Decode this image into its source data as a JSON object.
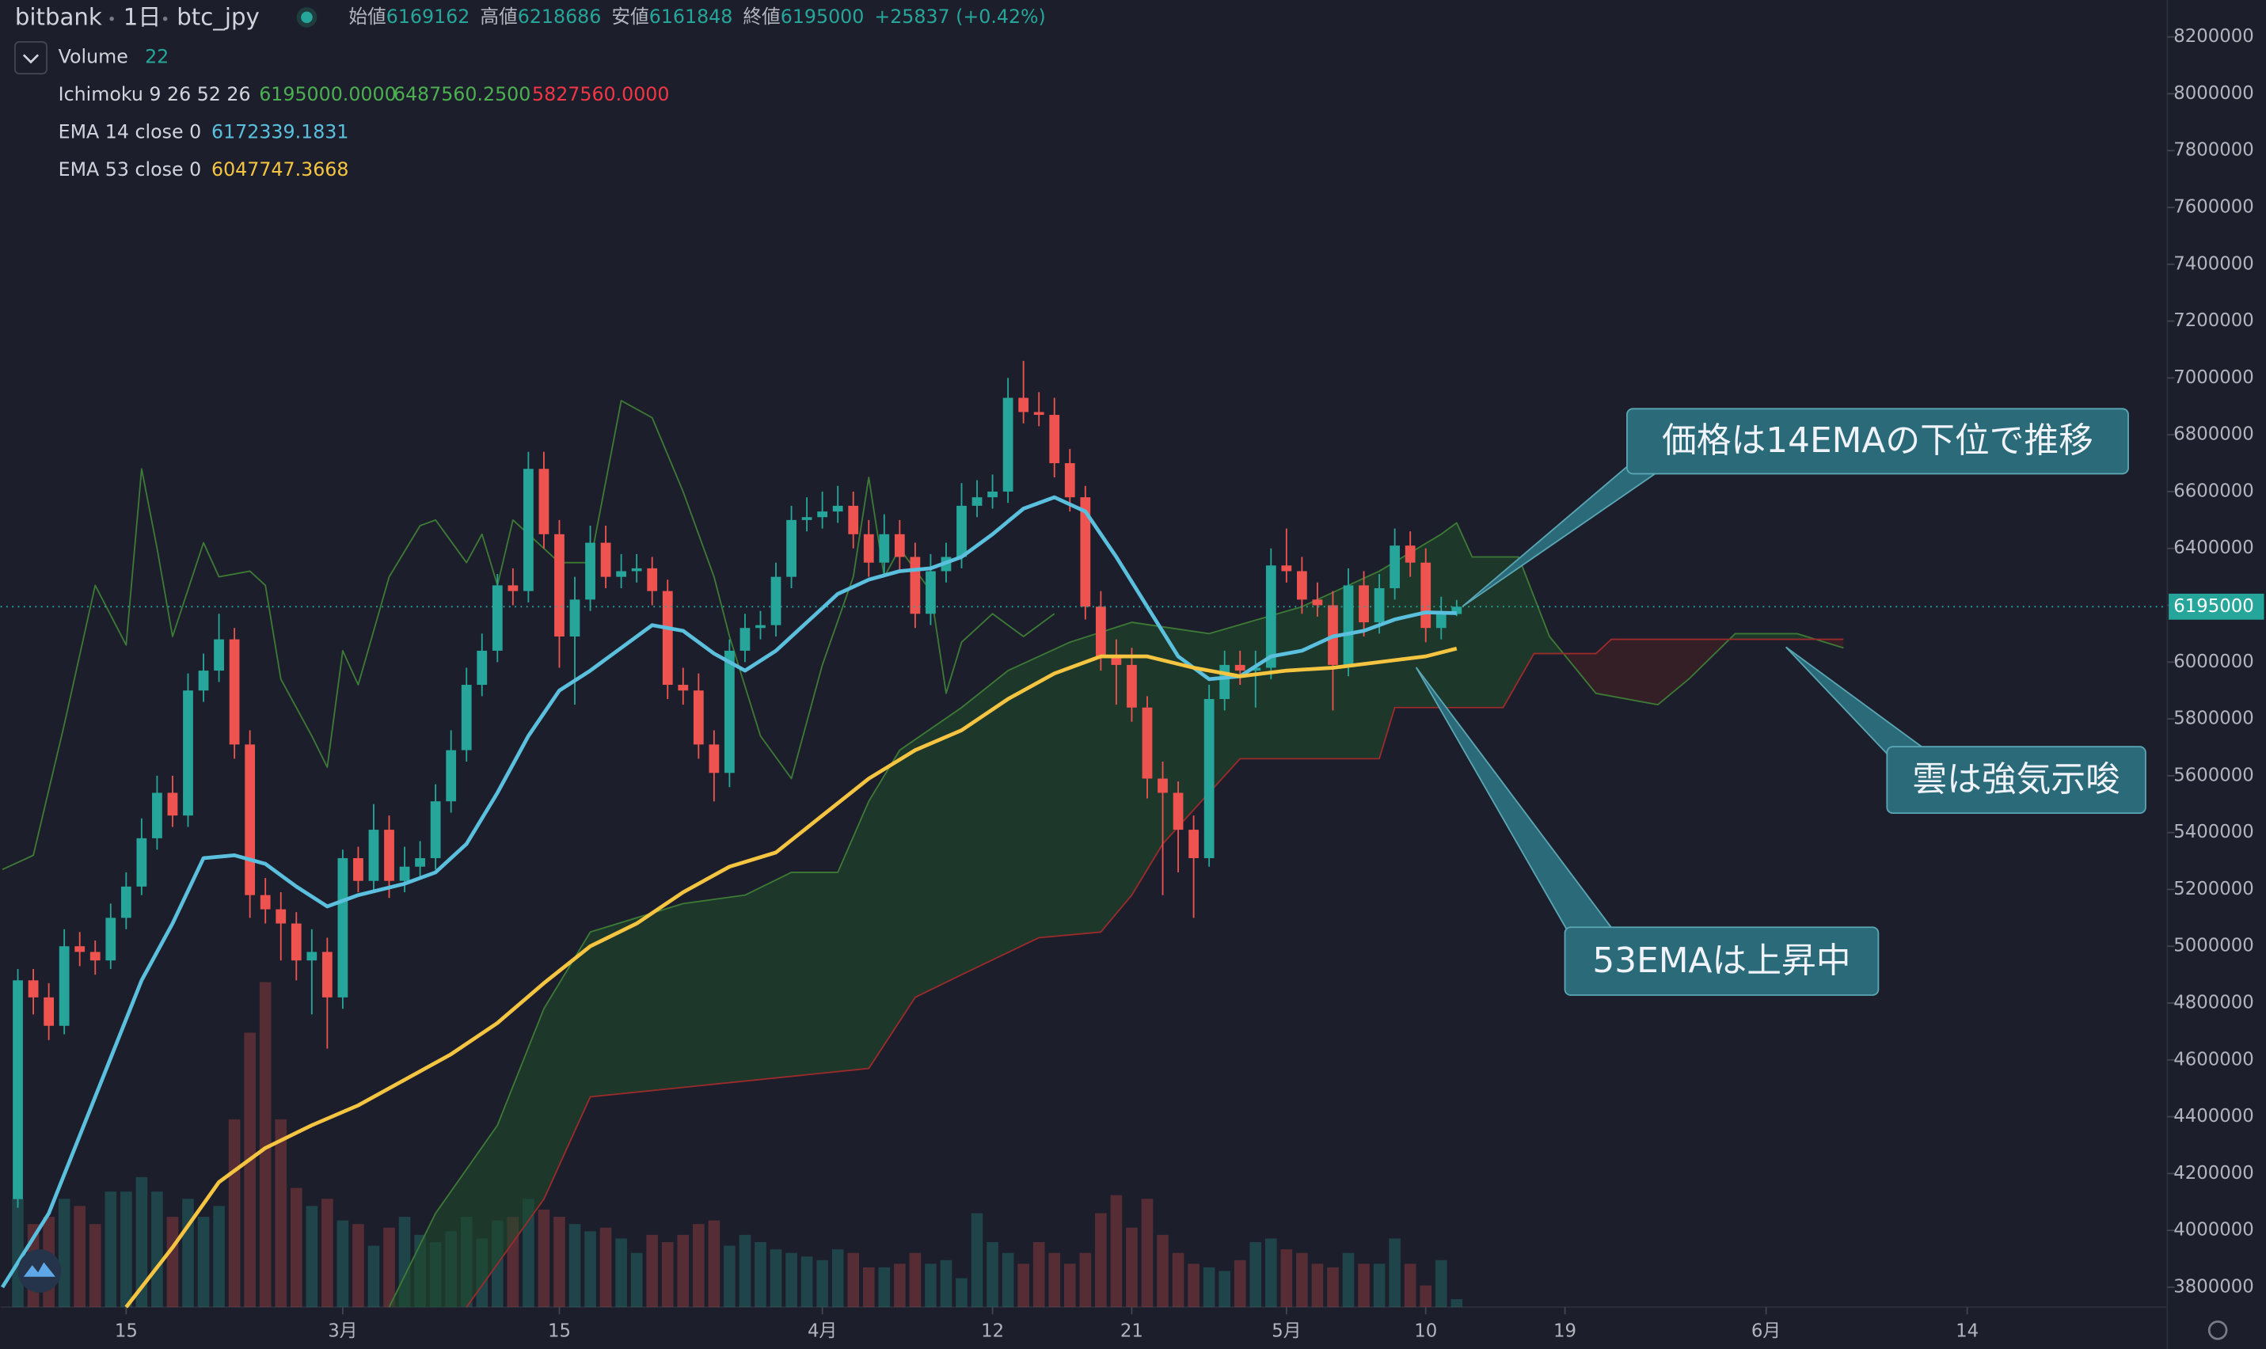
{
  "chart_data": {
    "type": "candlestick",
    "header": {
      "exchange": "bitbank",
      "interval": "1日",
      "symbol": "btc_jpy",
      "open_label": "始値",
      "high_label": "高値",
      "low_label": "安値",
      "close_label": "終値",
      "change": "+25837 (+0.42%)"
    },
    "up_color": "#26a69a",
    "down_color": "#ef5350",
    "grid": false,
    "xlim": [
      -8.12,
      131.93
    ],
    "ylim": [
      3730000,
      8330000
    ],
    "xticks": [
      {
        "value": 0,
        "label": "15"
      },
      {
        "value": 14,
        "label": "3月"
      },
      {
        "value": 28,
        "label": "15"
      },
      {
        "value": 45,
        "label": "4月"
      },
      {
        "value": 56,
        "label": "12"
      },
      {
        "value": 65,
        "label": "21"
      },
      {
        "value": 75,
        "label": "5月"
      },
      {
        "value": 84,
        "label": "10"
      },
      {
        "value": 93,
        "label": "19"
      },
      {
        "value": 106,
        "label": "6月"
      },
      {
        "value": 119,
        "label": "14"
      }
    ],
    "yticks": [
      3800000,
      4000000,
      4200000,
      4400000,
      4600000,
      4800000,
      5000000,
      5200000,
      5400000,
      5600000,
      5800000,
      6000000,
      6200000,
      6400000,
      6600000,
      6800000,
      7000000,
      7200000,
      7400000,
      7600000,
      7800000,
      8000000,
      8200000
    ],
    "candles": {
      "volume_name": "Volume",
      "x": [
        -7,
        -6,
        -5,
        -4,
        -3,
        -2,
        -1,
        0,
        1,
        2,
        3,
        4,
        5,
        6,
        7,
        8,
        9,
        10,
        11,
        12,
        13,
        14,
        15,
        16,
        17,
        18,
        19,
        20,
        21,
        22,
        23,
        24,
        25,
        26,
        27,
        28,
        29,
        30,
        31,
        32,
        33,
        34,
        35,
        36,
        37,
        38,
        39,
        40,
        41,
        42,
        43,
        44,
        45,
        46,
        47,
        48,
        49,
        50,
        51,
        52,
        53,
        54,
        55,
        56,
        57,
        58,
        59,
        60,
        61,
        62,
        63,
        64,
        65,
        66,
        67,
        68,
        69,
        70,
        71,
        72,
        73,
        74,
        75,
        76,
        77,
        78,
        79,
        80,
        81,
        82,
        83,
        84,
        85,
        86
      ],
      "open": [
        4110000,
        4880000,
        4820000,
        4720000,
        5000000,
        4980000,
        4950000,
        5100000,
        5210000,
        5380000,
        5540000,
        5460000,
        5900000,
        5970000,
        6080000,
        5710000,
        5180000,
        5130000,
        5080000,
        4950000,
        4980000,
        4820000,
        5310000,
        5230000,
        5410000,
        5230000,
        5280000,
        5310000,
        5510000,
        5690000,
        5920000,
        6040000,
        6270000,
        6250000,
        6680000,
        6450000,
        6090000,
        6220000,
        6420000,
        6300000,
        6320000,
        6330000,
        6250000,
        5920000,
        5900000,
        5710000,
        5610000,
        6040000,
        6120000,
        6130000,
        6300000,
        6500000,
        6510000,
        6530000,
        6550000,
        6450000,
        6350000,
        6450000,
        6370000,
        6170000,
        6320000,
        6370000,
        6550000,
        6580000,
        6600000,
        6930000,
        6880000,
        6870000,
        6700000,
        6580000,
        6195000,
        6020000,
        5990000,
        5840000,
        5590000,
        5540000,
        5410000,
        5310000,
        5870000,
        5990000,
        5970000,
        5980000,
        6340000,
        6320000,
        6220000,
        6200000,
        5990000,
        6270000,
        6140000,
        6260000,
        6410000,
        6350000,
        6120000,
        6169162
      ],
      "high": [
        4920000,
        4920000,
        4870000,
        5060000,
        5050000,
        5020000,
        5150000,
        5260000,
        5450000,
        5600000,
        5600000,
        5960000,
        6030000,
        6170000,
        6120000,
        5760000,
        5240000,
        5190000,
        5120000,
        5060000,
        5030000,
        5340000,
        5350000,
        5500000,
        5460000,
        5350000,
        5370000,
        5570000,
        5760000,
        5980000,
        6100000,
        6310000,
        6330000,
        6740000,
        6740000,
        6500000,
        6300000,
        6480000,
        6480000,
        6380000,
        6380000,
        6370000,
        6290000,
        5980000,
        5960000,
        5760000,
        6080000,
        6170000,
        6180000,
        6350000,
        6550000,
        6580000,
        6600000,
        6620000,
        6600000,
        6500000,
        6520000,
        6500000,
        6420000,
        6380000,
        6420000,
        6630000,
        6640000,
        6660000,
        7000000,
        7060000,
        6950000,
        6930000,
        6750000,
        6620000,
        6250000,
        6080000,
        6050000,
        5880000,
        5650000,
        5580000,
        5460000,
        5920000,
        6040000,
        6040000,
        6040000,
        6400000,
        6470000,
        6370000,
        6280000,
        6250000,
        6330000,
        6320000,
        6310000,
        6470000,
        6460000,
        6400000,
        6230000,
        6218686
      ],
      "low": [
        4080000,
        4760000,
        4670000,
        4690000,
        4930000,
        4900000,
        4920000,
        5060000,
        5180000,
        5340000,
        5420000,
        5420000,
        5860000,
        5930000,
        5660000,
        5100000,
        5080000,
        4950000,
        4880000,
        4760000,
        4640000,
        4780000,
        5190000,
        5190000,
        5170000,
        5190000,
        5240000,
        5270000,
        5470000,
        5650000,
        5880000,
        6000000,
        6200000,
        6210000,
        6400000,
        5980000,
        5850000,
        6180000,
        6260000,
        6260000,
        6280000,
        6200000,
        5870000,
        5850000,
        5660000,
        5510000,
        5560000,
        6000000,
        6080000,
        6090000,
        6260000,
        6460000,
        6470000,
        6490000,
        6400000,
        6300000,
        6300000,
        6320000,
        6120000,
        6130000,
        6280000,
        6330000,
        6510000,
        6540000,
        6560000,
        6840000,
        6830000,
        6650000,
        6530000,
        6150000,
        5970000,
        5850000,
        5790000,
        5520000,
        5180000,
        5260000,
        5100000,
        5280000,
        5830000,
        5920000,
        5840000,
        5940000,
        6280000,
        6170000,
        6160000,
        5830000,
        5950000,
        6090000,
        6100000,
        6220000,
        6300000,
        6070000,
        6080000,
        6161848
      ],
      "close": [
        4880000,
        4820000,
        4720000,
        5000000,
        4980000,
        4950000,
        5100000,
        5210000,
        5380000,
        5540000,
        5460000,
        5900000,
        5970000,
        6080000,
        5710000,
        5180000,
        5130000,
        5080000,
        4950000,
        4980000,
        4820000,
        5310000,
        5230000,
        5410000,
        5230000,
        5280000,
        5310000,
        5510000,
        5690000,
        5920000,
        6040000,
        6270000,
        6250000,
        6680000,
        6450000,
        6090000,
        6220000,
        6420000,
        6300000,
        6320000,
        6330000,
        6250000,
        5920000,
        5900000,
        5710000,
        5610000,
        6040000,
        6120000,
        6130000,
        6300000,
        6500000,
        6510000,
        6530000,
        6550000,
        6450000,
        6350000,
        6450000,
        6370000,
        6170000,
        6320000,
        6370000,
        6550000,
        6580000,
        6600000,
        6930000,
        6880000,
        6870000,
        6700000,
        6580000,
        6195000,
        6020000,
        5990000,
        5840000,
        5590000,
        5540000,
        5410000,
        5310000,
        5870000,
        5990000,
        5970000,
        5980000,
        6340000,
        6320000,
        6220000,
        6200000,
        5990000,
        6270000,
        6140000,
        6260000,
        6410000,
        6350000,
        6120000,
        6170000,
        6195000
      ],
      "volume": [
        300,
        230,
        250,
        300,
        280,
        230,
        320,
        320,
        360,
        320,
        250,
        300,
        250,
        280,
        520,
        760,
        900,
        520,
        330,
        280,
        300,
        240,
        230,
        170,
        220,
        250,
        200,
        180,
        210,
        250,
        190,
        240,
        250,
        300,
        270,
        250,
        230,
        210,
        220,
        190,
        150,
        200,
        180,
        200,
        230,
        240,
        170,
        200,
        180,
        160,
        150,
        140,
        130,
        160,
        150,
        110,
        110,
        120,
        150,
        120,
        130,
        80,
        260,
        180,
        150,
        120,
        180,
        150,
        120,
        150,
        260,
        310,
        220,
        300,
        200,
        150,
        120,
        110,
        100,
        130,
        180,
        190,
        160,
        150,
        120,
        110,
        150,
        120,
        120,
        190,
        120,
        60,
        130,
        22
      ]
    },
    "ichimoku": {
      "name": "Ichimoku 9 26 52 26",
      "values_text": [
        "6195000.0000",
        "6487560.2500",
        "5827560.0000"
      ],
      "value_colors": [
        "#4caf50",
        "#4caf50",
        "#f23645"
      ],
      "lagging": {
        "color": "#3d7a35",
        "x": [
          -8,
          -6,
          -4,
          -2,
          0,
          1,
          2,
          3,
          5,
          6,
          8,
          9,
          10,
          12,
          13,
          14,
          15,
          17,
          19,
          20,
          22,
          23,
          24,
          25,
          28,
          30,
          32,
          34,
          36,
          38,
          39,
          41,
          43,
          45,
          47,
          48,
          49,
          50,
          52,
          53,
          54,
          56,
          58,
          60
        ],
        "values": [
          5270000,
          5320000,
          5780000,
          6270000,
          6060000,
          6680000,
          6400000,
          6090000,
          6420000,
          6300000,
          6320000,
          6270000,
          5940000,
          5740000,
          5630000,
          6040000,
          5920000,
          6300000,
          6480000,
          6500000,
          6350000,
          6450000,
          6270000,
          6500000,
          6350000,
          6350000,
          6920000,
          6860000,
          6600000,
          6300000,
          6090000,
          5740000,
          5590000,
          5990000,
          6300000,
          6650000,
          6300000,
          6400000,
          6250000,
          5890000,
          6070000,
          6170000,
          6090000,
          6170000
        ]
      },
      "span_a": {
        "color": "#3d7a35",
        "cloud_color": "#1f4a2a",
        "x": [
          17,
          20,
          24,
          27,
          30,
          36,
          40,
          43,
          46,
          48,
          50,
          54,
          57,
          61,
          65,
          70,
          76,
          81,
          85,
          86,
          87,
          90,
          92,
          95,
          99,
          101,
          104,
          108,
          111
        ],
        "values": [
          3730000,
          4060000,
          4370000,
          4780000,
          5050000,
          5150000,
          5180000,
          5260000,
          5260000,
          5510000,
          5690000,
          5840000,
          5970000,
          6070000,
          6140000,
          6100000,
          6195000,
          6320000,
          6450000,
          6490000,
          6370000,
          6370000,
          6090000,
          5890000,
          5850000,
          5940000,
          6100000,
          6100000,
          6050000
        ]
      },
      "span_b": {
        "color": "#9b2b2b",
        "cloud_color": "#4a1f24",
        "x": [
          22,
          27,
          30,
          48,
          51,
          54,
          59,
          63,
          65,
          67,
          72,
          81,
          82,
          89,
          91,
          95,
          96,
          111
        ],
        "values": [
          3730000,
          4110000,
          4470000,
          4570000,
          4820000,
          4900000,
          5030000,
          5050000,
          5180000,
          5360000,
          5660000,
          5660000,
          5840000,
          5840000,
          6030000,
          6030000,
          6080000,
          6080000
        ]
      }
    },
    "series": [
      {
        "name": "EMA 14 close 0",
        "color": "#5bc0de",
        "x": [
          -8,
          -5,
          -2,
          1,
          3,
          5,
          7,
          9,
          11,
          13,
          15,
          18,
          20,
          22,
          24,
          26,
          28,
          30,
          32,
          34,
          36,
          38,
          40,
          42,
          44,
          46,
          48,
          50,
          52,
          54,
          56,
          58,
          60,
          62,
          64,
          66,
          68,
          70,
          72,
          74,
          76,
          78,
          80,
          82,
          84,
          86
        ],
        "values": [
          3800000,
          4060000,
          4470000,
          4880000,
          5080000,
          5310000,
          5320000,
          5290000,
          5210000,
          5140000,
          5180000,
          5220000,
          5260000,
          5360000,
          5540000,
          5740000,
          5900000,
          5970000,
          6050000,
          6130000,
          6110000,
          6030000,
          5970000,
          6040000,
          6140000,
          6240000,
          6290000,
          6320000,
          6330000,
          6370000,
          6450000,
          6540000,
          6580000,
          6530000,
          6370000,
          6195000,
          6020000,
          5940000,
          5950000,
          6020000,
          6040000,
          6090000,
          6110000,
          6150000,
          6175000,
          6172339.1831
        ]
      },
      {
        "name": "EMA 53 close 0",
        "color": "#f5c542",
        "x": [
          0,
          3,
          6,
          9,
          12,
          15,
          18,
          21,
          24,
          27,
          30,
          33,
          36,
          39,
          42,
          45,
          48,
          51,
          54,
          57,
          60,
          63,
          66,
          69,
          72,
          75,
          78,
          81,
          84,
          86
        ],
        "values": [
          3730000,
          3940000,
          4170000,
          4290000,
          4370000,
          4440000,
          4530000,
          4620000,
          4730000,
          4870000,
          5000000,
          5080000,
          5190000,
          5280000,
          5330000,
          5460000,
          5590000,
          5690000,
          5760000,
          5870000,
          5960000,
          6020000,
          6020000,
          5980000,
          5950000,
          5970000,
          5980000,
          6000000,
          6020000,
          6047747.3668
        ]
      }
    ],
    "annotations": [
      {
        "text": "価格は14EMAの下位で推移"
      },
      {
        "text": "雲は強気示唆"
      },
      {
        "text": "53EMAは上昇中"
      }
    ]
  }
}
